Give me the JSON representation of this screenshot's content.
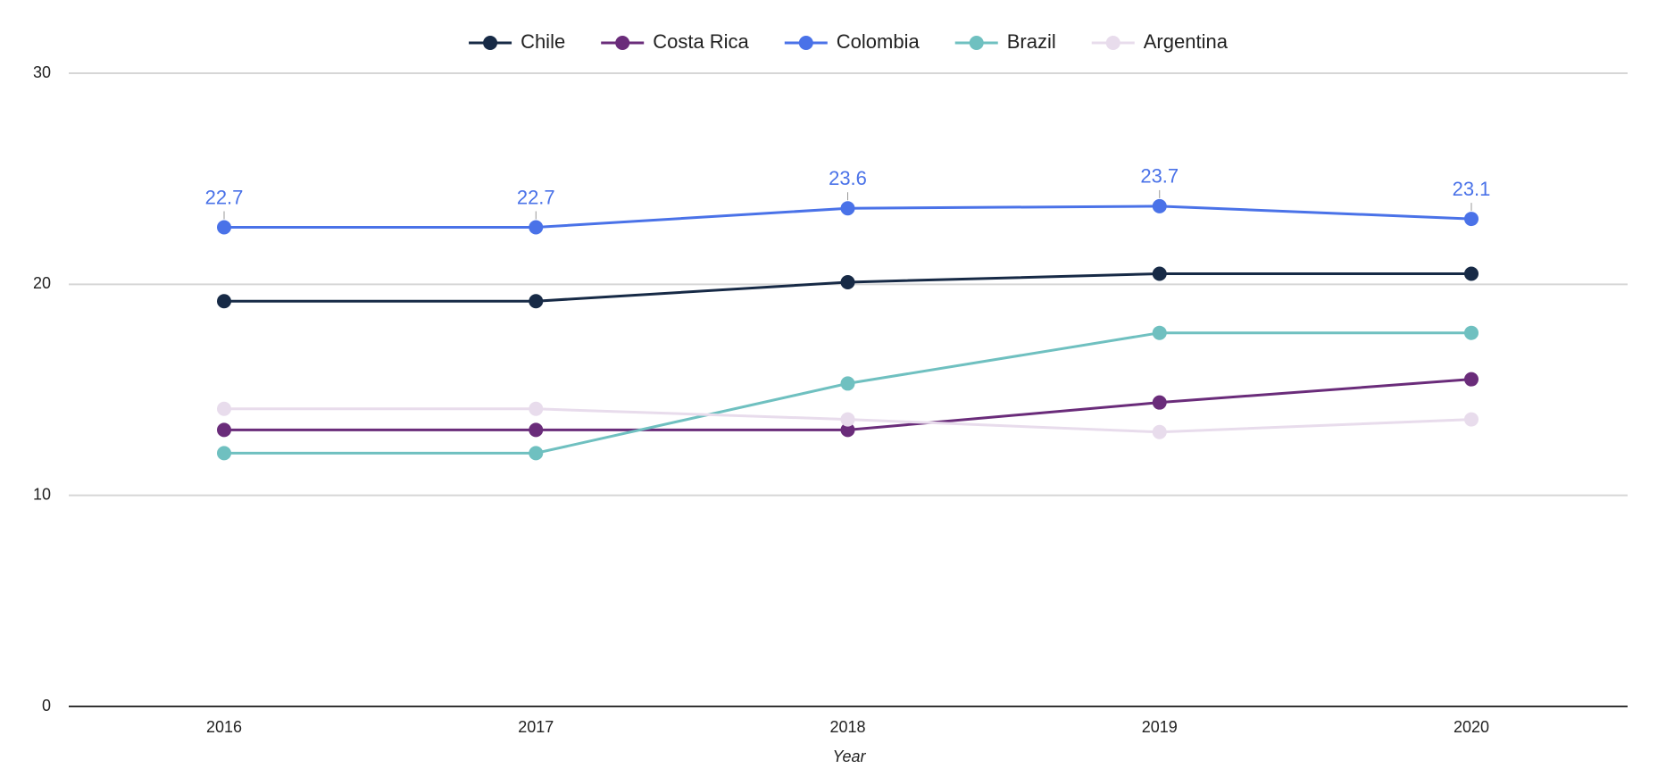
{
  "chart_data": {
    "type": "line",
    "x_label": "Year",
    "categories": [
      "2016",
      "2017",
      "2018",
      "2019",
      "2020"
    ],
    "ylim": [
      0,
      30
    ],
    "yticks": [
      0,
      10,
      20,
      30
    ],
    "grid": true,
    "legend": "top",
    "series": [
      {
        "name": "Chile",
        "color": "#172a46",
        "values": [
          19.2,
          19.2,
          20.1,
          20.5,
          20.5
        ]
      },
      {
        "name": "Costa Rica",
        "color": "#6a2c7a",
        "values": [
          13.1,
          13.1,
          13.1,
          14.4,
          15.5
        ]
      },
      {
        "name": "Colombia",
        "color": "#4a72e8",
        "values": [
          22.7,
          22.7,
          23.6,
          23.7,
          23.1
        ],
        "data_labels": true
      },
      {
        "name": "Brazil",
        "color": "#6fc0c0",
        "values": [
          12.0,
          12.0,
          15.3,
          17.7,
          17.7
        ]
      },
      {
        "name": "Argentina",
        "color": "#e8dcec",
        "values": [
          14.1,
          14.1,
          13.6,
          13.0,
          13.6
        ]
      }
    ]
  }
}
